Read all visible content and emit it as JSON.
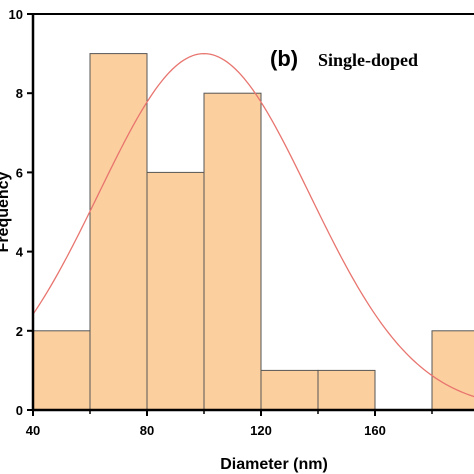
{
  "chart_data": {
    "type": "bar",
    "subtype": "histogram",
    "panel_label": "(b)",
    "title": "Single-doped",
    "xlabel": "Diameter (nm)",
    "ylabel": "Frequency",
    "xlim": [
      40,
      200
    ],
    "ylim": [
      0,
      10
    ],
    "x_ticks": [
      40,
      80,
      120,
      160
    ],
    "y_ticks": [
      0,
      2,
      4,
      6,
      8,
      10
    ],
    "bins": [
      {
        "start": 40,
        "end": 60,
        "value": 2
      },
      {
        "start": 60,
        "end": 80,
        "value": 9
      },
      {
        "start": 80,
        "end": 100,
        "value": 6
      },
      {
        "start": 100,
        "end": 120,
        "value": 8
      },
      {
        "start": 120,
        "end": 140,
        "value": 1
      },
      {
        "start": 140,
        "end": 160,
        "value": 1
      },
      {
        "start": 160,
        "end": 180,
        "value": 0
      },
      {
        "start": 180,
        "end": 200,
        "value": 2
      }
    ],
    "fit_curve": {
      "type": "gaussian",
      "mean": 100,
      "sigma": 37,
      "peak": 9,
      "color": "#e8756f"
    },
    "bar_fill": "#fccf9e",
    "bar_stroke": "#555555",
    "grid": false,
    "legend": "none"
  }
}
